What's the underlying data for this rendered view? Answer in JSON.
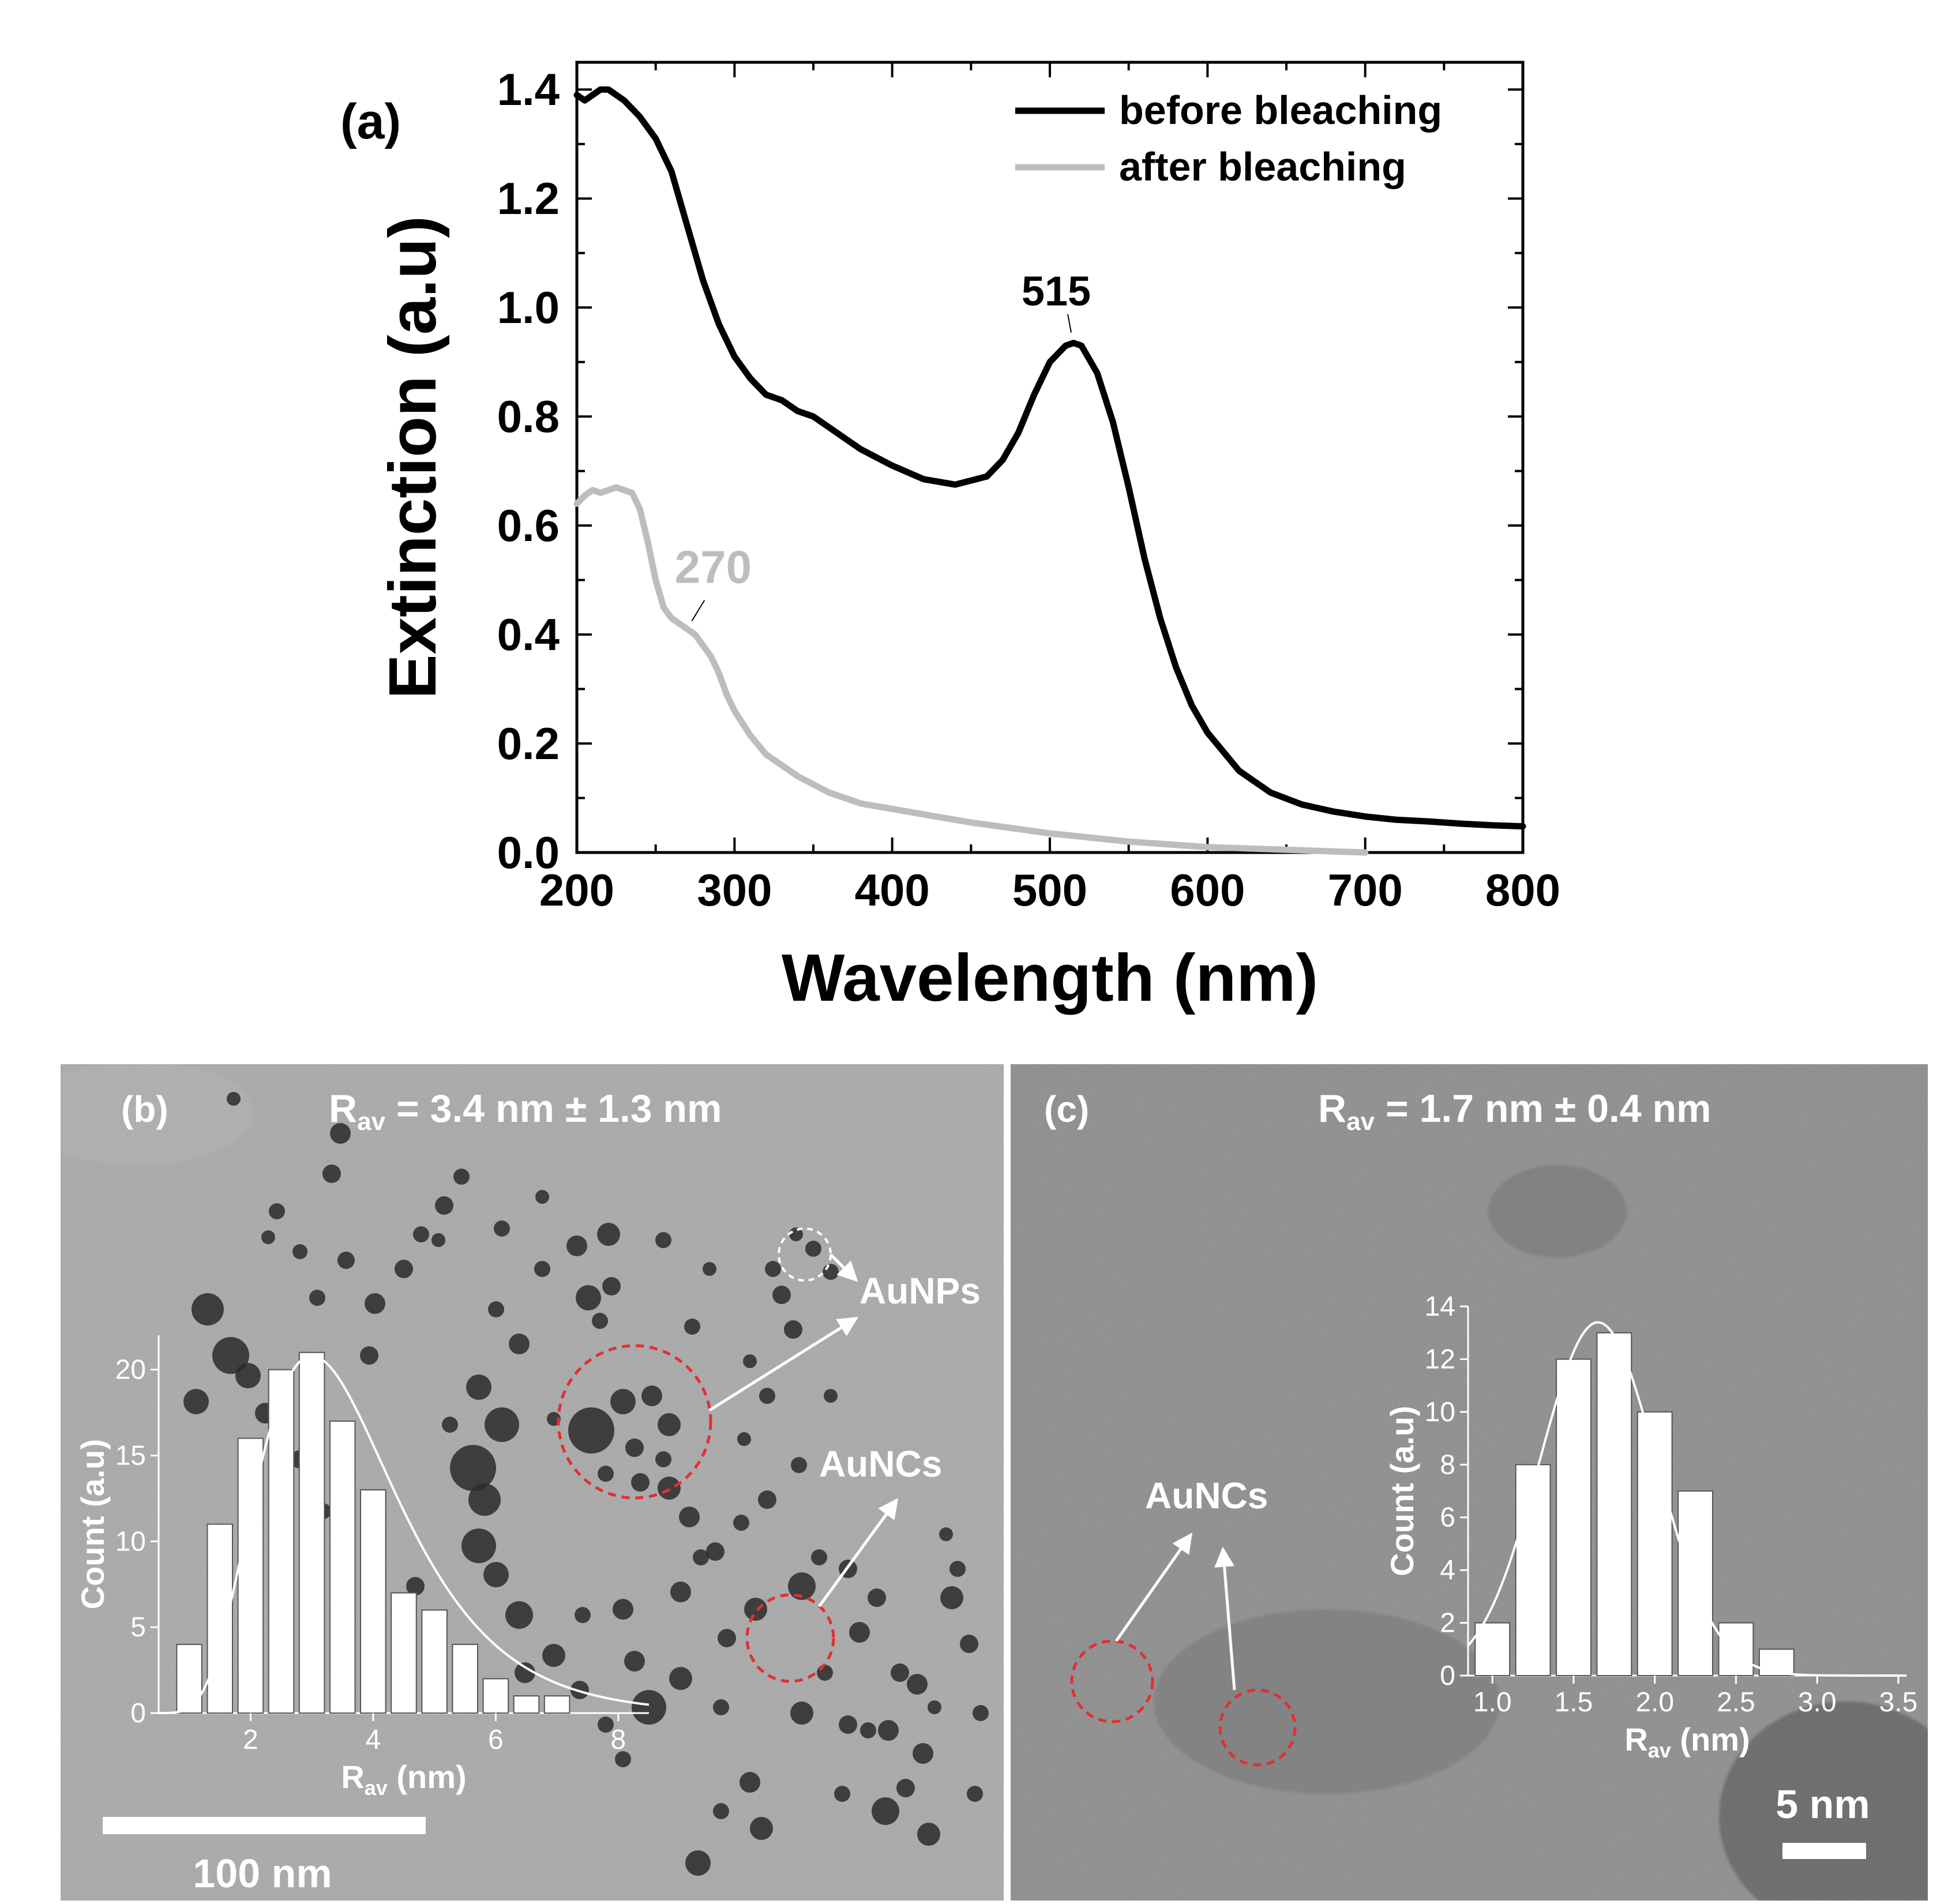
{
  "chart_data": [
    {
      "panel": "(a)",
      "type": "line",
      "xlabel": "Wavelength (nm)",
      "ylabel": "Extinction (a.u)",
      "xlim": [
        200,
        800
      ],
      "ylim": [
        0,
        1.45
      ],
      "xticks": [
        "200",
        "300",
        "400",
        "500",
        "600",
        "700",
        "800"
      ],
      "yticks": [
        "0.0",
        "0.2",
        "0.4",
        "0.6",
        "0.8",
        "1.0",
        "1.2",
        "1.4"
      ],
      "legend": {
        "position": "top-right",
        "entries": [
          "before bleaching",
          "after bleaching"
        ]
      },
      "series": [
        {
          "name": "before bleaching",
          "color": "#000000",
          "x": [
            200,
            205,
            210,
            215,
            220,
            230,
            240,
            250,
            260,
            270,
            280,
            290,
            300,
            310,
            320,
            330,
            340,
            350,
            360,
            380,
            400,
            420,
            440,
            460,
            470,
            480,
            490,
            500,
            510,
            515,
            520,
            530,
            540,
            550,
            560,
            570,
            580,
            590,
            600,
            620,
            640,
            660,
            680,
            700,
            720,
            740,
            760,
            780,
            800
          ],
          "y": [
            1.39,
            1.38,
            1.39,
            1.4,
            1.4,
            1.38,
            1.35,
            1.31,
            1.25,
            1.15,
            1.05,
            0.97,
            0.91,
            0.87,
            0.84,
            0.83,
            0.81,
            0.8,
            0.78,
            0.74,
            0.71,
            0.685,
            0.675,
            0.69,
            0.72,
            0.77,
            0.84,
            0.9,
            0.93,
            0.935,
            0.93,
            0.88,
            0.79,
            0.67,
            0.54,
            0.43,
            0.34,
            0.27,
            0.22,
            0.15,
            0.11,
            0.088,
            0.075,
            0.066,
            0.06,
            0.057,
            0.053,
            0.05,
            0.048
          ]
        },
        {
          "name": "after bleaching",
          "color": "#bdbdbd",
          "x": [
            200,
            205,
            210,
            215,
            220,
            225,
            230,
            235,
            240,
            245,
            250,
            255,
            260,
            265,
            270,
            275,
            280,
            285,
            290,
            295,
            300,
            310,
            320,
            340,
            360,
            380,
            400,
            420,
            450,
            500,
            550,
            600,
            650,
            700
          ],
          "y": [
            0.64,
            0.655,
            0.665,
            0.66,
            0.665,
            0.67,
            0.665,
            0.66,
            0.63,
            0.57,
            0.5,
            0.45,
            0.43,
            0.42,
            0.41,
            0.4,
            0.38,
            0.36,
            0.33,
            0.29,
            0.26,
            0.215,
            0.18,
            0.14,
            0.11,
            0.09,
            0.08,
            0.07,
            0.055,
            0.035,
            0.02,
            0.01,
            0.005,
            0.0
          ]
        }
      ],
      "annotations": [
        {
          "text": "515",
          "x": 515,
          "y": 0.935
        },
        {
          "text": "270",
          "x": 270,
          "y": 0.41
        }
      ]
    },
    {
      "panel": "(b) inset",
      "type": "bar",
      "xlabel": "R",
      "xlabel_sub": "av",
      "xlabel_suffix": " (nm)",
      "ylabel": "Count (a.u)",
      "xlim": [
        0.5,
        8.5
      ],
      "ylim": [
        0,
        22
      ],
      "xticks": [
        "2",
        "4",
        "6",
        "8"
      ],
      "yticks": [
        "0",
        "5",
        "10",
        "15",
        "20"
      ],
      "bin_centers": [
        1.0,
        1.5,
        2.0,
        2.5,
        3.0,
        3.5,
        4.0,
        4.5,
        5.0,
        5.5,
        6.0,
        6.5,
        7.0,
        7.5
      ],
      "values": [
        4,
        11,
        16,
        20,
        21,
        17,
        13,
        7,
        6,
        4,
        2,
        1,
        1,
        0
      ],
      "fit": {
        "type": "log-normal",
        "mean": 3.4,
        "sd": 1.3
      }
    },
    {
      "panel": "(c) inset",
      "type": "bar",
      "xlabel": "R",
      "xlabel_sub": "av",
      "xlabel_suffix": " (nm)",
      "ylabel": "Count (a.u)",
      "xlim": [
        0.85,
        3.55
      ],
      "ylim": [
        0,
        14
      ],
      "xticks": [
        "1.0",
        "1.5",
        "2.0",
        "2.5",
        "3.0",
        "3.5"
      ],
      "yticks": [
        "0",
        "2",
        "4",
        "6",
        "8",
        "10",
        "12",
        "14"
      ],
      "bin_centers": [
        1.0,
        1.25,
        1.5,
        1.75,
        2.0,
        2.25,
        2.5,
        2.75
      ],
      "values": [
        2,
        8,
        12,
        13,
        10,
        7,
        2,
        1
      ],
      "fit": {
        "type": "gaussian",
        "mean": 1.7,
        "sd": 0.4
      }
    }
  ],
  "panel_a": {
    "label": "(a)"
  },
  "panel_b": {
    "label": "(b)",
    "r_prefix": "R",
    "r_sub": "av",
    "r_value": " = 3.4 nm ± 1.3 nm",
    "aunps_label": "AuNPs",
    "auncs_label": "AuNCs",
    "scale_label": "100 nm"
  },
  "panel_c": {
    "label": "(c)",
    "r_prefix": "R",
    "r_sub": "av",
    "r_value": " = 1.7 nm ± 0.4 nm",
    "auncs_label": "AuNCs",
    "scale_label": "5 nm"
  },
  "colors": {
    "tem_b_bg": "#9f9f9f",
    "tem_c_bg": "#8c8c8c",
    "particle": "#2a2a2a",
    "marker_red": "#e03030",
    "after_line": "#bdbdbd"
  }
}
